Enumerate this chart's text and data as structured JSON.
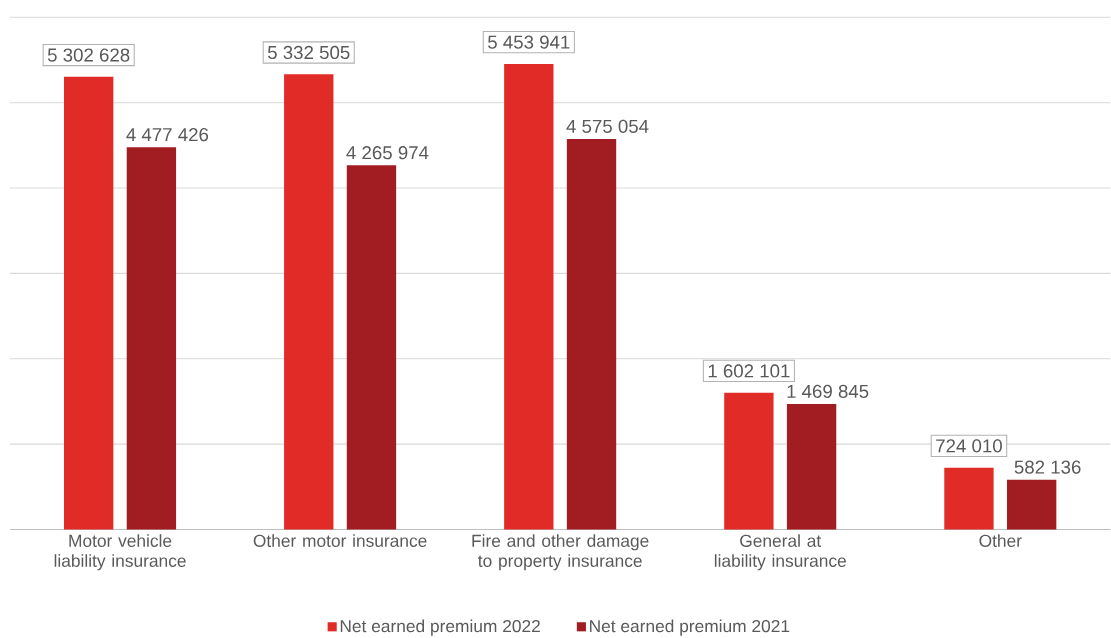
{
  "chart_data": {
    "type": "bar",
    "categories": [
      "Motor vehicle liability insurance",
      "Other motor insurance",
      "Fire and other damage to property insurance",
      "General at liability insurance",
      "Other"
    ],
    "series": [
      {
        "name": "Net earned premium 2022",
        "color": "#e02b27",
        "values": [
          5302628,
          5332505,
          5453941,
          1602101,
          724010
        ],
        "value_labels": [
          "5 302 628",
          "5 332 505",
          "5 453 941",
          "1 602 101",
          "724 010"
        ]
      },
      {
        "name": "Net earned premium 2021",
        "color": "#a21d21",
        "values": [
          4477426,
          4265974,
          4575054,
          1469845,
          582136
        ],
        "value_labels": [
          "4 477 426",
          "4 265 974",
          "4 575 054",
          "1 469 845",
          "582 136"
        ]
      }
    ],
    "ylim": [
      0,
      6000000
    ],
    "yticks": [
      {
        "value": 0,
        "label": null
      },
      {
        "value": 1000000,
        "label": null
      },
      {
        "value": 2000000,
        "label": null
      },
      {
        "value": 3000000,
        "label": null
      },
      {
        "value": 4000000,
        "label": null
      },
      {
        "value": 5000000,
        "label": null
      },
      {
        "value": 6000000,
        "label": null
      }
    ],
    "tick_labels": "x",
    "grid": "y",
    "legend": "bottom"
  }
}
